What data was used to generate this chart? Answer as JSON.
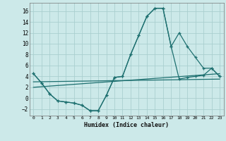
{
  "xlabel": "Humidex (Indice chaleur)",
  "xlim": [
    -0.5,
    23.5
  ],
  "ylim": [
    -3.2,
    17.5
  ],
  "yticks": [
    -2,
    0,
    2,
    4,
    6,
    8,
    10,
    12,
    14,
    16
  ],
  "xticks": [
    0,
    1,
    2,
    3,
    4,
    5,
    6,
    7,
    8,
    9,
    10,
    11,
    12,
    13,
    14,
    15,
    16,
    17,
    18,
    19,
    20,
    21,
    22,
    23
  ],
  "background_color": "#cce9e9",
  "grid_color": "#aacfcf",
  "line_color": "#1e7070",
  "curve1_x": [
    0,
    1,
    2,
    3,
    4,
    5,
    6,
    7,
    8,
    9,
    10,
    11,
    12,
    13,
    14,
    15,
    16,
    17,
    18,
    19,
    20,
    21,
    22,
    23
  ],
  "curve1_y": [
    4.5,
    2.8,
    0.8,
    -0.5,
    -0.7,
    -0.9,
    -1.3,
    -2.3,
    -2.3,
    0.5,
    3.8,
    4.0,
    8.0,
    11.5,
    15.0,
    16.5,
    16.5,
    9.5,
    12.0,
    9.5,
    7.5,
    5.5,
    5.5,
    4.0
  ],
  "curve2_x": [
    0,
    1,
    2,
    3,
    4,
    5,
    6,
    7,
    8,
    9,
    10,
    11,
    12,
    13,
    14,
    15,
    16,
    17,
    18,
    19,
    20,
    21,
    22,
    23
  ],
  "curve2_y": [
    4.5,
    2.8,
    0.8,
    -0.5,
    -0.7,
    -0.9,
    -1.3,
    -2.3,
    -2.3,
    0.5,
    3.8,
    4.0,
    8.0,
    11.5,
    15.0,
    16.5,
    16.5,
    9.5,
    3.5,
    3.8,
    4.0,
    4.2,
    5.5,
    4.0
  ],
  "line3_x": [
    0,
    23
  ],
  "line3_y": [
    2.0,
    4.5
  ],
  "line4_x": [
    0,
    23
  ],
  "line4_y": [
    3.0,
    3.5
  ]
}
